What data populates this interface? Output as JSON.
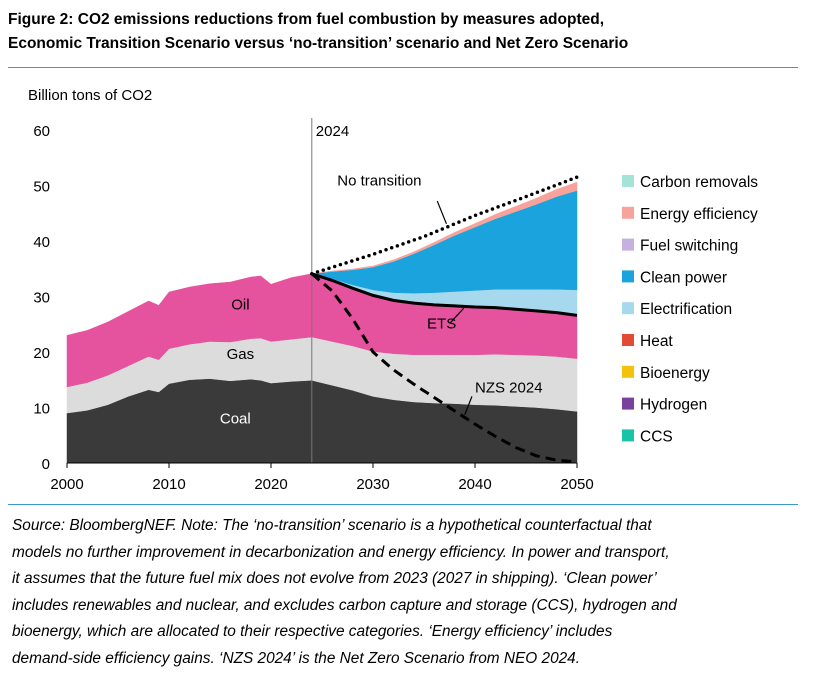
{
  "figure": {
    "title_line1": "Figure 2: CO2 emissions reductions from fuel combustion by measures adopted,",
    "title_line2": "Economic Transition Scenario versus ‘no-transition’ scenario and Net Zero Scenario"
  },
  "chart_data": {
    "type": "area",
    "ylabel": "Billion tons of CO2",
    "xlim": [
      2000,
      2050
    ],
    "ylim": [
      0,
      60
    ],
    "x_ticks": [
      2000,
      2010,
      2020,
      2030,
      2040,
      2050
    ],
    "y_ticks": [
      0,
      10,
      20,
      30,
      40,
      50,
      60
    ],
    "grid": false,
    "legend_position": "right",
    "vertical_marker": {
      "x": 2024,
      "label": "2024"
    },
    "historical_x": [
      2000,
      2002,
      2004,
      2006,
      2008,
      2009,
      2010,
      2012,
      2014,
      2016,
      2018,
      2019,
      2020,
      2022,
      2024
    ],
    "historical_series": [
      {
        "name": "Coal",
        "color": "#3a3a3a",
        "label": "Coal",
        "values": [
          9.0,
          9.5,
          10.5,
          12.0,
          13.2,
          12.8,
          14.3,
          15.0,
          15.2,
          14.8,
          15.1,
          14.9,
          14.4,
          14.7,
          14.9
        ]
      },
      {
        "name": "Gas",
        "color": "#dcdcdc",
        "label": "Gas",
        "values": [
          4.7,
          5.0,
          5.3,
          5.5,
          6.0,
          5.8,
          6.3,
          6.4,
          6.7,
          7.0,
          7.3,
          7.6,
          7.5,
          7.6,
          7.8
        ]
      },
      {
        "name": "Oil",
        "color": "#e5529e",
        "label": "Oil",
        "values": [
          9.3,
          9.4,
          9.6,
          9.8,
          10.0,
          9.8,
          10.2,
          10.3,
          10.4,
          10.8,
          11.1,
          11.2,
          10.3,
          11.1,
          11.4
        ]
      }
    ],
    "projection_x": [
      2024,
      2026,
      2028,
      2030,
      2032,
      2034,
      2036,
      2038,
      2040,
      2042,
      2044,
      2046,
      2048,
      2050
    ],
    "projection_series": [
      {
        "name": "Coal",
        "color": "#3a3a3a",
        "values": [
          14.9,
          14.0,
          13.1,
          12.0,
          11.4,
          11.0,
          10.8,
          10.7,
          10.5,
          10.4,
          10.2,
          10.0,
          9.7,
          9.3
        ]
      },
      {
        "name": "Gas",
        "color": "#dcdcdc",
        "values": [
          7.8,
          7.9,
          8.0,
          8.1,
          8.3,
          8.5,
          8.7,
          8.8,
          9.0,
          9.2,
          9.3,
          9.4,
          9.5,
          9.5
        ]
      },
      {
        "name": "Oil",
        "color": "#e5529e",
        "values": [
          11.4,
          11.0,
          10.4,
          10.1,
          9.6,
          9.3,
          9.0,
          8.8,
          8.6,
          8.4,
          8.2,
          8.0,
          7.9,
          7.8
        ]
      },
      {
        "name": "CCS",
        "color": "#19c3a8",
        "values": [
          0,
          0,
          0,
          0,
          0,
          0,
          0,
          0,
          0,
          0,
          0,
          0,
          0,
          0
        ]
      },
      {
        "name": "Hydrogen",
        "color": "#7b3f9e",
        "values": [
          0,
          0,
          0,
          0,
          0,
          0,
          0,
          0,
          0,
          0,
          0,
          0,
          0,
          0
        ]
      },
      {
        "name": "Bioenergy",
        "color": "#f4c20d",
        "values": [
          0,
          0,
          0,
          0,
          0,
          0,
          0,
          0,
          0,
          0,
          0,
          0,
          0,
          0
        ]
      },
      {
        "name": "Heat",
        "color": "#e34a33",
        "values": [
          0,
          0,
          0,
          0,
          0,
          0,
          0,
          0,
          0,
          0,
          0,
          0,
          0,
          0
        ]
      },
      {
        "name": "Electrification",
        "color": "#a6d8ee",
        "values": [
          0.0,
          0.3,
          0.6,
          1.0,
          1.4,
          1.8,
          2.2,
          2.6,
          3.0,
          3.3,
          3.6,
          3.9,
          4.2,
          4.6
        ]
      },
      {
        "name": "Clean power",
        "color": "#1aa3dc",
        "values": [
          0.0,
          1.3,
          2.7,
          4.1,
          5.6,
          7.1,
          8.6,
          10.1,
          11.4,
          12.7,
          14.0,
          15.3,
          16.7,
          17.9
        ]
      },
      {
        "name": "Fuel switching",
        "color": "#c5b0e0",
        "values": [
          0,
          0,
          0,
          0,
          0,
          0,
          0,
          0,
          0,
          0,
          0,
          0,
          0,
          0
        ]
      },
      {
        "name": "Energy efficiency",
        "color": "#f7a39b",
        "values": [
          0.0,
          0.1,
          0.15,
          0.2,
          0.3,
          0.35,
          0.45,
          0.55,
          0.65,
          0.8,
          0.95,
          1.1,
          1.3,
          1.5
        ]
      },
      {
        "name": "Carbon removals",
        "color": "#a3e4d7",
        "values": [
          0,
          0,
          0,
          0,
          0,
          0,
          0,
          0,
          0,
          0,
          0,
          0,
          0,
          0
        ]
      }
    ],
    "lines": [
      {
        "name": "No transition",
        "label": "No transition",
        "style": "dotted",
        "x": [
          2024,
          2030,
          2035,
          2040,
          2045,
          2050
        ],
        "values": [
          34.1,
          37.6,
          40.8,
          44.6,
          48.0,
          51.5
        ]
      },
      {
        "name": "ETS",
        "label": "ETS",
        "style": "solid",
        "x": [
          2024,
          2026,
          2028,
          2030,
          2032,
          2034,
          2036,
          2038,
          2040,
          2042,
          2044,
          2046,
          2048,
          2050
        ],
        "values": [
          34.1,
          32.9,
          31.5,
          30.2,
          29.3,
          28.8,
          28.5,
          28.3,
          28.1,
          28.0,
          27.7,
          27.4,
          27.1,
          26.6
        ]
      },
      {
        "name": "NZS 2024",
        "label": "NZS 2024",
        "style": "dashed",
        "x": [
          2024,
          2026,
          2028,
          2030,
          2032,
          2034,
          2036,
          2038,
          2040,
          2042,
          2044,
          2046,
          2048,
          2050
        ],
        "values": [
          34.1,
          31.0,
          26.0,
          20.0,
          16.8,
          14.2,
          11.8,
          9.4,
          7.0,
          4.8,
          2.8,
          1.3,
          0.5,
          0.2
        ]
      }
    ],
    "legend": [
      {
        "label": "Carbon removals",
        "color": "#a3e4d7"
      },
      {
        "label": "Energy efficiency",
        "color": "#f7a39b"
      },
      {
        "label": "Fuel switching",
        "color": "#c5b0e0"
      },
      {
        "label": "Clean power",
        "color": "#1aa3dc"
      },
      {
        "label": "Electrification",
        "color": "#a6d8ee"
      },
      {
        "label": "Heat",
        "color": "#e34a33"
      },
      {
        "label": "Bioenergy",
        "color": "#f4c20d"
      },
      {
        "label": "Hydrogen",
        "color": "#7b3f9e"
      },
      {
        "label": "CCS",
        "color": "#19c3a8"
      }
    ]
  },
  "note": {
    "lines": [
      "Source: BloombergNEF. Note: The ‘no-transition’ scenario is a hypothetical counterfactual that",
      "models no further improvement in decarbonization and energy efficiency. In power and transport,",
      "it assumes that the future fuel mix does not evolve from 2023 (2027 in shipping). ‘Clean power’",
      "includes renewables and nuclear, and excludes carbon capture and storage (CCS), hydrogen and",
      "bioenergy, which are allocated to their respective categories. ‘Energy efficiency’ includes",
      "demand-side efficiency gains. ‘NZS 2024’ is the Net Zero Scenario from NEO 2024."
    ]
  }
}
